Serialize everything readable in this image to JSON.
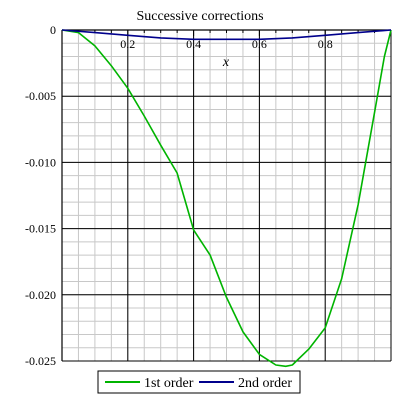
{
  "chart_data": {
    "type": "line",
    "title": "Successive corrections",
    "xlabel": "x",
    "ylabel": "",
    "xlim": [
      0,
      1
    ],
    "ylim": [
      -0.025,
      0
    ],
    "grid": true,
    "legend_position": "bottom",
    "x_major_ticks": [
      0.2,
      0.4,
      0.6,
      0.8
    ],
    "x_tick_labels": [
      "0.2",
      "0.4",
      "0.6",
      "0.8"
    ],
    "y_major_ticks": [
      0,
      -0.005,
      -0.01,
      -0.015,
      -0.02,
      -0.025
    ],
    "y_tick_labels": [
      "0",
      "-0.005",
      "-0.010",
      "-0.015",
      "-0.020",
      "-0.025"
    ],
    "series": [
      {
        "name": "1st order",
        "color": "#00b400",
        "x": [
          0,
          0.05,
          0.1,
          0.15,
          0.2,
          0.25,
          0.3,
          0.35,
          0.4,
          0.45,
          0.5,
          0.55,
          0.6,
          0.65,
          0.68,
          0.7,
          0.75,
          0.8,
          0.85,
          0.9,
          0.95,
          0.98,
          1.0
        ],
        "values": [
          0,
          -0.0002,
          -0.0012,
          -0.0027,
          -0.0044,
          -0.0065,
          -0.0087,
          -0.0108,
          -0.0151,
          -0.017,
          -0.0202,
          -0.0228,
          -0.0245,
          -0.0253,
          -0.0254,
          -0.0253,
          -0.0241,
          -0.0225,
          -0.0188,
          -0.0132,
          -0.0062,
          -0.002,
          0
        ]
      },
      {
        "name": "2nd order",
        "color": "#00008c",
        "x": [
          0,
          0.1,
          0.2,
          0.3,
          0.4,
          0.5,
          0.6,
          0.7,
          0.8,
          0.9,
          1.0
        ],
        "values": [
          0,
          -0.0002,
          -0.0004,
          -0.0006,
          -0.0007,
          -0.0007,
          -0.0007,
          -0.0006,
          -0.0004,
          -0.0002,
          0
        ]
      }
    ]
  }
}
